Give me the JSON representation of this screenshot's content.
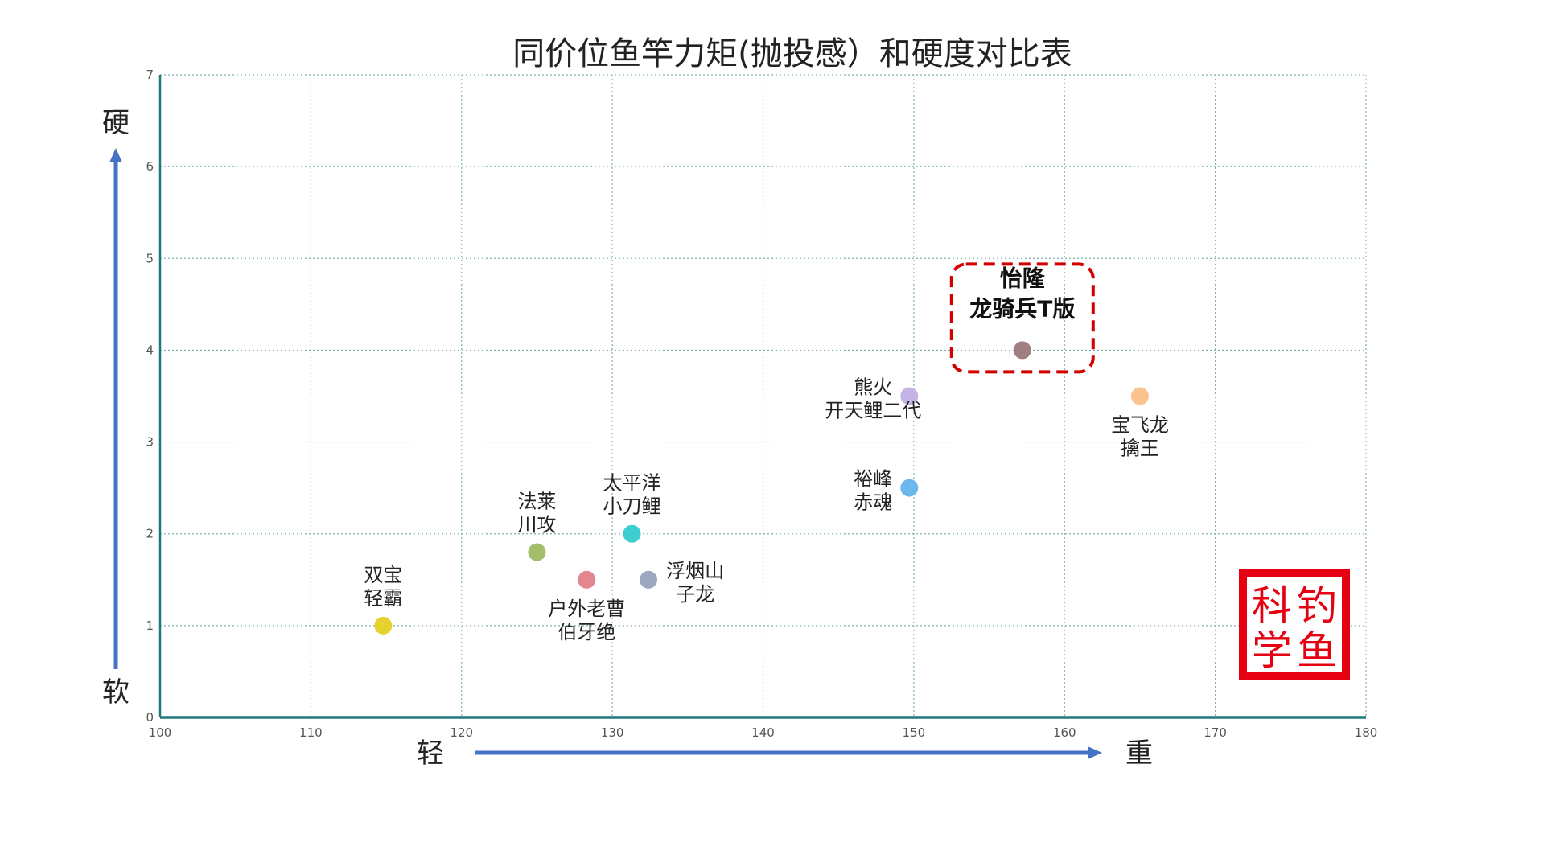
{
  "chart_data": {
    "type": "scatter",
    "title": "同价位鱼竿力矩(抛投感）和硬度对比表",
    "xlim": [
      100,
      180
    ],
    "ylim": [
      0,
      7
    ],
    "x_ticks": [
      100,
      110,
      120,
      130,
      140,
      150,
      160,
      170,
      180
    ],
    "y_ticks": [
      0,
      1,
      2,
      3,
      4,
      5,
      6,
      7
    ],
    "grid": true,
    "x_axis_labels": {
      "low": "轻",
      "high": "重"
    },
    "y_axis_labels": {
      "low": "软",
      "high": "硬"
    },
    "points": [
      {
        "label": [
          "双宝",
          "轻霸"
        ],
        "x": 114.8,
        "y": 1.0,
        "color": "#e6d22e"
      },
      {
        "label": [
          "法莱",
          "川攻"
        ],
        "x": 125.0,
        "y": 1.8,
        "color": "#a2be6a"
      },
      {
        "label": [
          "户外老曹",
          "伯牙绝"
        ],
        "x": 128.3,
        "y": 1.5,
        "color": "#e3868e"
      },
      {
        "label": [
          "太平洋",
          "小刀鲤"
        ],
        "x": 131.3,
        "y": 2.0,
        "color": "#3ecdd0"
      },
      {
        "label": [
          "浮烟山",
          "子龙"
        ],
        "x": 132.4,
        "y": 1.5,
        "color": "#9ba8bf"
      },
      {
        "label": [
          "熊火",
          "开天鲤二代"
        ],
        "x": 149.7,
        "y": 3.5,
        "color": "#c3b3e6"
      },
      {
        "label": [
          "裕峰",
          "赤魂"
        ],
        "x": 149.7,
        "y": 2.5,
        "color": "#6cb8ee"
      },
      {
        "label": [
          "怡隆",
          "龙骑兵T版"
        ],
        "x": 157.2,
        "y": 4.0,
        "color": "#a07f80",
        "highlighted": true
      },
      {
        "label": [
          "宝飞龙",
          "擒王"
        ],
        "x": 165.0,
        "y": 3.5,
        "color": "#fbc18e"
      }
    ],
    "highlight_color": "#d40000",
    "arrow_color": "#4472c4",
    "axis_color": "#1f7a7a"
  },
  "seal": {
    "text": "科钓学鱼",
    "color": "#e60012"
  }
}
